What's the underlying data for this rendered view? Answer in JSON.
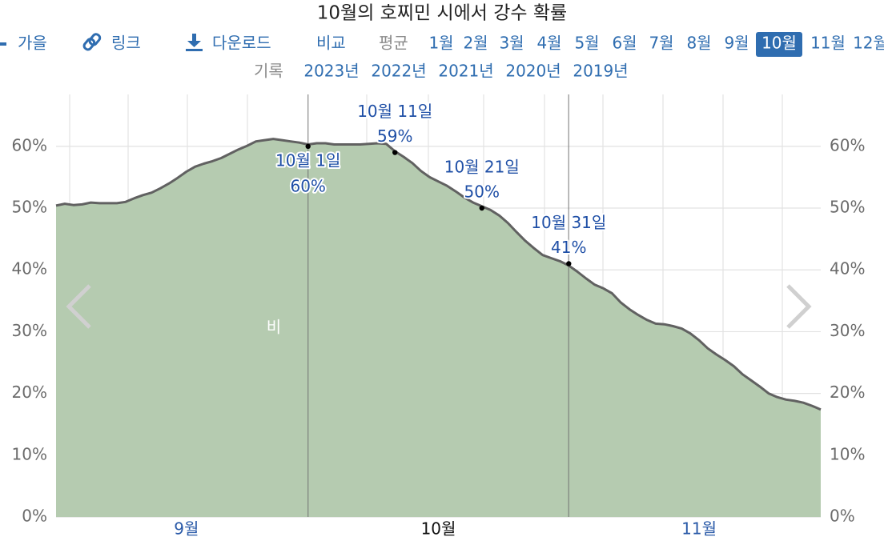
{
  "title": "10월의 호찌민 시에서 강수 확률",
  "nav": {
    "season": "가을",
    "link": "링크",
    "download": "다운로드",
    "compare": "비교",
    "average": "평균",
    "months": [
      "1월",
      "2월",
      "3월",
      "4월",
      "5월",
      "6월",
      "7월",
      "8월",
      "9월",
      "10월",
      "11월",
      "12월"
    ],
    "selected": 9,
    "history": "기록",
    "years": [
      "2023년",
      "2022년",
      "2021년",
      "2020년",
      "2019년"
    ]
  },
  "chart_data": {
    "type": "area",
    "area_label": "비",
    "xlim": [
      0,
      88
    ],
    "categories": [
      null,
      null,
      null,
      null,
      null,
      null,
      null,
      null,
      null,
      null,
      null,
      null,
      null,
      null,
      null,
      "9월",
      null,
      null,
      null,
      null,
      null,
      null,
      null,
      null,
      null,
      null,
      null,
      null,
      null,
      null,
      null,
      null,
      null,
      null,
      null,
      null,
      null,
      null,
      null,
      null,
      null,
      null,
      null,
      null,
      "10월",
      null,
      null,
      null,
      null,
      null,
      null,
      null,
      null,
      null,
      null,
      null,
      null,
      null,
      null,
      null,
      null,
      null,
      null,
      null,
      null,
      null,
      null,
      null,
      null,
      null,
      null,
      null,
      null,
      null,
      "11월",
      null,
      null,
      null,
      null,
      null,
      null,
      null,
      null,
      null,
      null,
      null,
      null,
      null,
      null
    ],
    "series": [
      {
        "name": "비",
        "color": "#b5cbb0",
        "line_color": "#616161",
        "values": [
          50.4,
          50.7,
          50.5,
          50.6,
          50.9,
          50.8,
          50.8,
          50.8,
          51.0,
          51.6,
          52.1,
          52.5,
          53.2,
          54.0,
          54.9,
          55.9,
          56.7,
          57.2,
          57.6,
          58.1,
          58.8,
          59.5,
          60.1,
          60.8,
          61.0,
          61.2,
          61.0,
          60.8,
          60.6,
          60.3,
          60.5,
          60.5,
          60.3,
          60.3,
          60.3,
          60.3,
          60.4,
          60.5,
          60.4,
          59.2,
          58.3,
          57.3,
          56.0,
          55.0,
          54.3,
          53.6,
          52.7,
          51.7,
          50.9,
          50.3,
          49.7,
          48.8,
          47.6,
          46.1,
          44.7,
          43.5,
          42.4,
          41.9,
          41.4,
          40.7,
          39.7,
          38.6,
          37.6,
          37.0,
          36.2,
          34.7,
          33.6,
          32.7,
          31.9,
          31.3,
          31.2,
          30.9,
          30.5,
          29.7,
          28.6,
          27.3,
          26.3,
          25.4,
          24.4,
          23.1,
          22.1,
          21.1,
          20.0,
          19.4,
          19.0,
          18.8,
          18.5,
          18.0,
          17.4
        ]
      }
    ],
    "annotations": [
      {
        "text": "10월 1일",
        "x": 29,
        "value": 60,
        "value_label": "60%",
        "placement": "below"
      },
      {
        "text": "10월 11일",
        "x": 39,
        "value": 59,
        "value_label": "59%",
        "placement": "above"
      },
      {
        "text": "10월 21일",
        "x": 49,
        "value": 50,
        "value_label": "50%",
        "placement": "above"
      },
      {
        "text": "10월 31일",
        "x": 59,
        "value": 41,
        "value_label": "41%",
        "placement": "above"
      }
    ],
    "ylim": [
      0,
      68.4
    ],
    "yticks": [
      {
        "value": 0,
        "label": "0%"
      },
      {
        "value": 10,
        "label": "10%"
      },
      {
        "value": 20,
        "label": "20%"
      },
      {
        "value": 30,
        "label": "30%"
      },
      {
        "value": 40,
        "label": "40%"
      },
      {
        "value": 50,
        "label": "50%"
      },
      {
        "value": 60,
        "label": "60%"
      }
    ],
    "grid": true
  }
}
